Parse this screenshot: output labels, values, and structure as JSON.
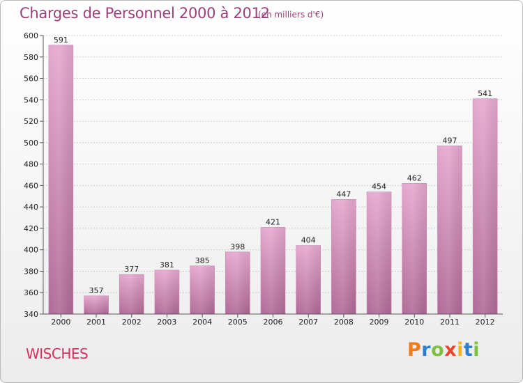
{
  "header": {
    "title": "Charges de Personnel 2000 à 2012",
    "subtitle": "(en milliers d'€)"
  },
  "commune": "WISCHES",
  "logo": {
    "text": "Proxiti",
    "letters": [
      "P",
      "r",
      "o",
      "x",
      "i",
      "t",
      "i"
    ],
    "colors": [
      "#f07c1a",
      "#2a7fd1",
      "#7cc142",
      "#e8452e",
      "#f2b41c",
      "#2a7fd1",
      "#7cc142"
    ]
  },
  "colors": {
    "bar_top": "#e6a8cf",
    "bar_bottom": "#b06a98",
    "grid": "#cccccc",
    "title": "#9a3f78",
    "commune": "#d43060"
  },
  "chart_data": {
    "type": "bar",
    "categories": [
      "2000",
      "2001",
      "2002",
      "2003",
      "2004",
      "2005",
      "2006",
      "2007",
      "2008",
      "2009",
      "2010",
      "2011",
      "2012"
    ],
    "values": [
      591,
      357,
      377,
      381,
      385,
      398,
      421,
      404,
      447,
      454,
      462,
      497,
      541
    ],
    "ylim": [
      340,
      600
    ],
    "yticks": [
      340,
      360,
      380,
      400,
      420,
      440,
      460,
      480,
      500,
      520,
      540,
      560,
      580,
      600
    ],
    "grid": true,
    "xlabel": "",
    "ylabel": ""
  }
}
